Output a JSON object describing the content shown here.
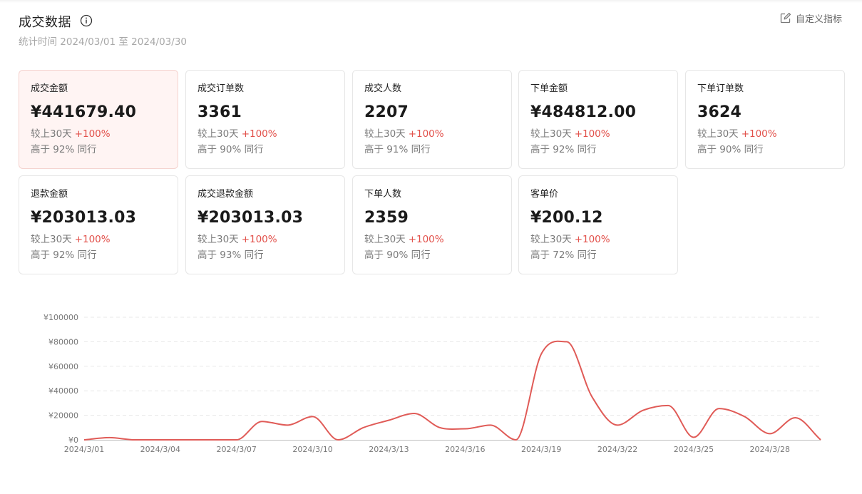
{
  "header": {
    "title": "成交数据",
    "subtitle": "统计时间 2024/03/01 至 2024/03/30",
    "custom_label": "自定义指标"
  },
  "metrics": [
    {
      "label": "成交金额",
      "value": "¥441679.40",
      "compare_prefix": "较上30天",
      "compare_value": "+100%",
      "peer": "高于 92% 同行",
      "active": true
    },
    {
      "label": "成交订单数",
      "value": "3361",
      "compare_prefix": "较上30天",
      "compare_value": "+100%",
      "peer": "高于 90% 同行",
      "active": false
    },
    {
      "label": "成交人数",
      "value": "2207",
      "compare_prefix": "较上30天",
      "compare_value": "+100%",
      "peer": "高于 91% 同行",
      "active": false
    },
    {
      "label": "下单金额",
      "value": "¥484812.00",
      "compare_prefix": "较上30天",
      "compare_value": "+100%",
      "peer": "高于 92% 同行",
      "active": false
    },
    {
      "label": "下单订单数",
      "value": "3624",
      "compare_prefix": "较上30天",
      "compare_value": "+100%",
      "peer": "高于 90% 同行",
      "active": false
    },
    {
      "label": "退款金额",
      "value": "¥203013.03",
      "compare_prefix": "较上30天",
      "compare_value": "+100%",
      "peer": "高于 92% 同行",
      "active": false
    },
    {
      "label": "成交退款金额",
      "value": "¥203013.03",
      "compare_prefix": "较上30天",
      "compare_value": "+100%",
      "peer": "高于 93% 同行",
      "active": false
    },
    {
      "label": "下单人数",
      "value": "2359",
      "compare_prefix": "较上30天",
      "compare_value": "+100%",
      "peer": "高于 90% 同行",
      "active": false
    },
    {
      "label": "客单价",
      "value": "¥200.12",
      "compare_prefix": "较上30天",
      "compare_value": "+100%",
      "peer": "高于 72% 同行",
      "active": false
    }
  ],
  "colors": {
    "accent": "#e2504a",
    "line": "#e05b57",
    "gridline": "#e8e8e8",
    "axis_text": "#777777"
  },
  "icons": {
    "info": "info-circle-icon",
    "custom": "edit-square-icon"
  },
  "chart_data": {
    "type": "line",
    "title": "",
    "xlabel": "",
    "ylabel": "",
    "x": [
      "2024/3/01",
      "2024/3/02",
      "2024/3/03",
      "2024/3/04",
      "2024/3/05",
      "2024/3/06",
      "2024/3/07",
      "2024/3/08",
      "2024/3/09",
      "2024/3/10",
      "2024/3/11",
      "2024/3/12",
      "2024/3/13",
      "2024/3/14",
      "2024/3/15",
      "2024/3/16",
      "2024/3/17",
      "2024/3/18",
      "2024/3/19",
      "2024/3/20",
      "2024/3/21",
      "2024/3/22",
      "2024/3/23",
      "2024/3/24",
      "2024/3/25",
      "2024/3/26",
      "2024/3/27",
      "2024/3/28",
      "2024/3/29",
      "2024/3/30"
    ],
    "x_tick_labels": [
      "2024/3/01",
      "2024/3/04",
      "2024/3/07",
      "2024/3/10",
      "2024/3/13",
      "2024/3/16",
      "2024/3/19",
      "2024/3/22",
      "2024/3/25",
      "2024/3/28"
    ],
    "series": [
      {
        "values": [
          0,
          1800,
          0,
          0,
          0,
          0,
          0,
          15000,
          12000,
          19000,
          0,
          10000,
          16000,
          21500,
          10000,
          9000,
          12000,
          0,
          70000,
          80000,
          35000,
          12000,
          24000,
          28000,
          2000,
          25500,
          19000,
          5000,
          18000,
          0
        ]
      }
    ],
    "y_ticks": [
      "¥0",
      "¥20000",
      "¥40000",
      "¥60000",
      "¥80000",
      "¥100000"
    ],
    "ylim": [
      0,
      100000
    ],
    "grid": true,
    "legend": "none"
  }
}
